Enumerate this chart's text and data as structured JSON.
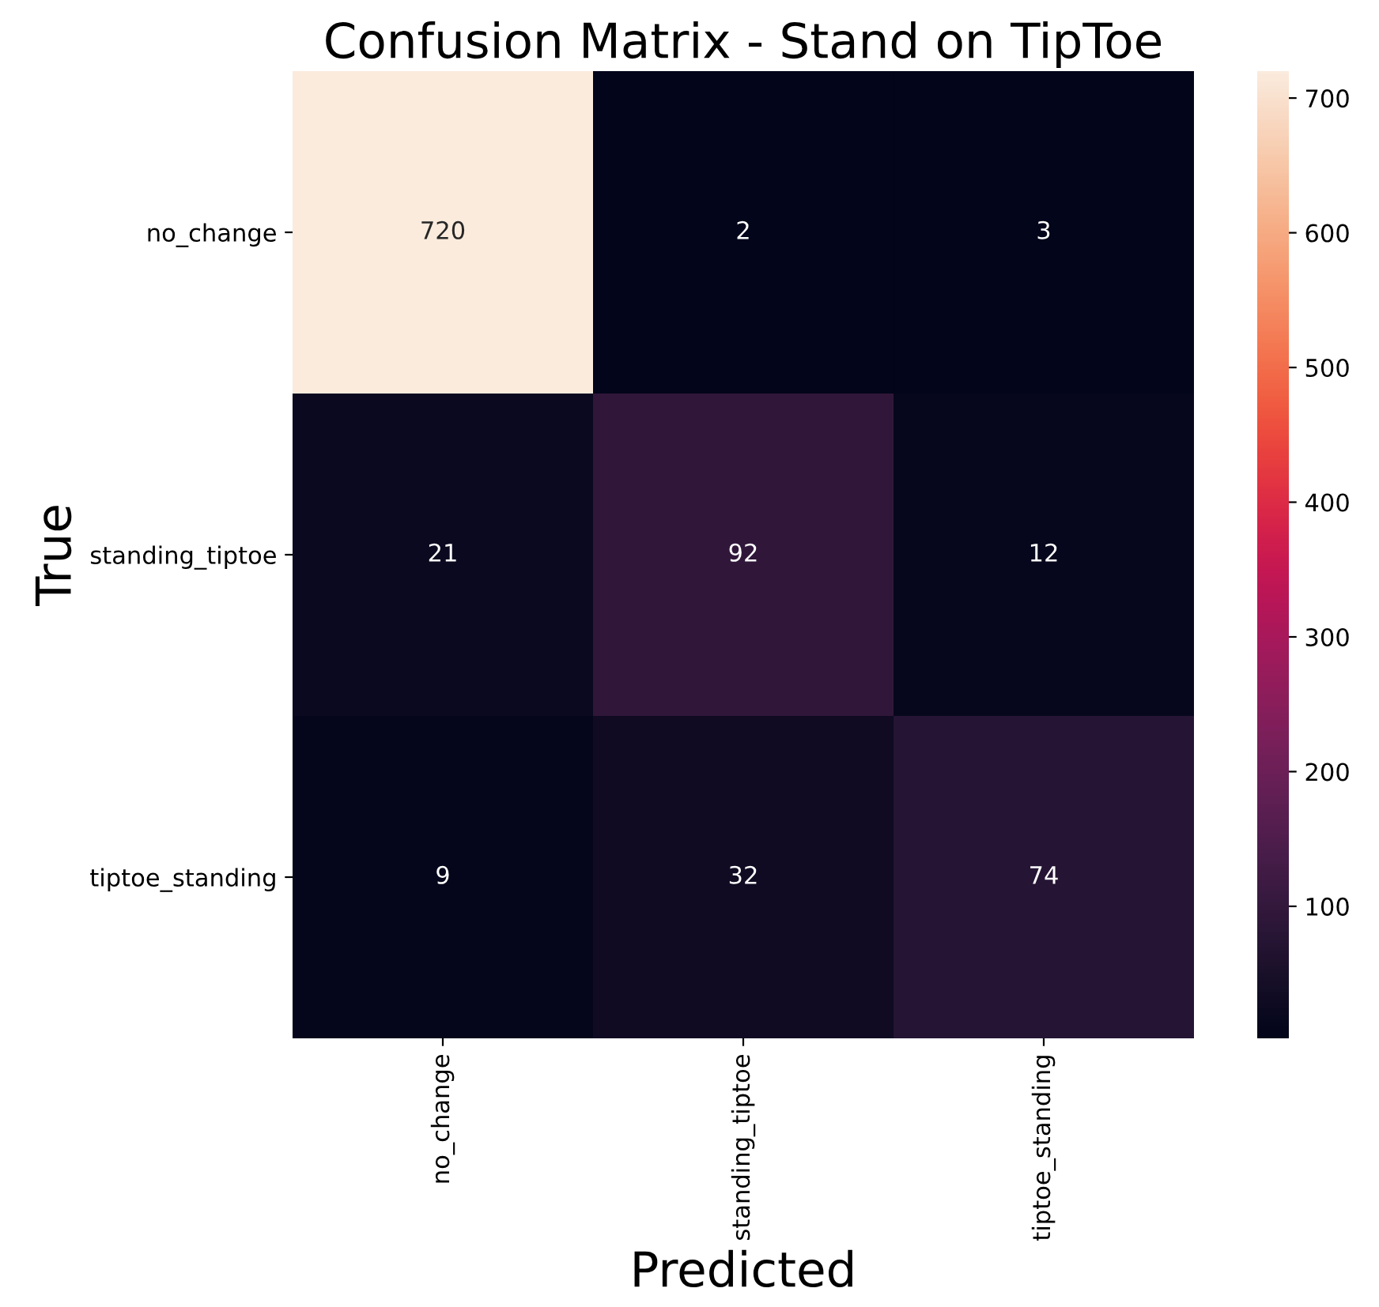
{
  "chart_data": {
    "type": "heatmap",
    "title": "Confusion Matrix - Stand on TipToe",
    "xlabel": "Predicted",
    "ylabel": "True",
    "categories": [
      "no_change",
      "standing_tiptoe",
      "tiptoe_standing"
    ],
    "y_categories": [
      "no_change",
      "standing_tiptoe",
      "tiptoe_standing"
    ],
    "cells": [
      [
        720,
        2,
        3
      ],
      [
        21,
        92,
        12
      ],
      [
        9,
        32,
        74
      ]
    ],
    "data_labels": true,
    "clim": [
      2,
      720
    ],
    "cticks": [
      100,
      200,
      300,
      400,
      500,
      600,
      700
    ]
  }
}
